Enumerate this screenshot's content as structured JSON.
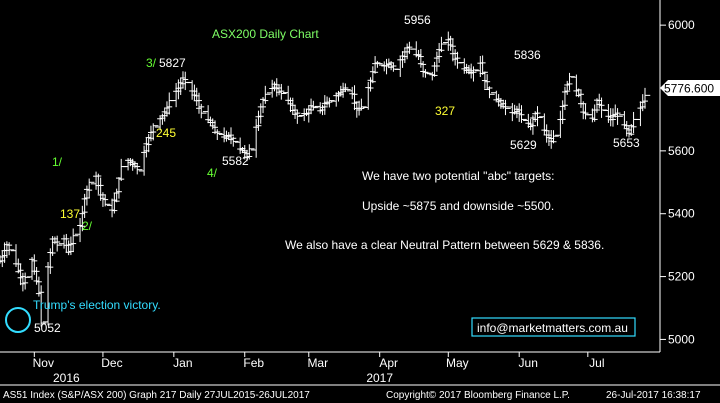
{
  "chart_data": {
    "type": "ohlc",
    "title": "ASX200 Daily Chart",
    "y_range": [
      4960,
      6080
    ],
    "y_ticks": [
      5000,
      5200,
      5400,
      5600,
      5800,
      6000
    ],
    "y_tick_labels": [
      "5000",
      "5200",
      "5400",
      "5600",
      "5800",
      "6000"
    ],
    "last_value_label": "5776.600",
    "last_value": 5776.6,
    "x_start": "2016-10-17",
    "x_end": "2017-07-26",
    "x_month_labels": [
      {
        "label": "Nov",
        "date": "2016-11-01"
      },
      {
        "label": "Dec",
        "date": "2016-12-01"
      },
      {
        "label": "Jan",
        "date": "2017-01-01"
      },
      {
        "label": "Feb",
        "date": "2017-02-01"
      },
      {
        "label": "Mar",
        "date": "2017-03-01"
      },
      {
        "label": "Apr",
        "date": "2017-04-01"
      },
      {
        "label": "May",
        "date": "2017-05-01"
      },
      {
        "label": "Jun",
        "date": "2017-06-01"
      },
      {
        "label": "Jul",
        "date": "2017-07-01"
      }
    ],
    "x_year_labels": [
      {
        "label": "2016",
        "date": "2016-11-15"
      },
      {
        "label": "2017",
        "date": "2017-04-01"
      }
    ],
    "series": [
      {
        "name": "AS51 Index (S&P/ASX 200)",
        "close": [
          {
            "date": "2016-10-17",
            "value": 5250
          },
          {
            "date": "2016-10-20",
            "value": 5300
          },
          {
            "date": "2016-10-24",
            "value": 5240
          },
          {
            "date": "2016-10-27",
            "value": 5180
          },
          {
            "date": "2016-10-31",
            "value": 5250
          },
          {
            "date": "2016-11-03",
            "value": 5150
          },
          {
            "date": "2016-11-04",
            "value": 5052
          },
          {
            "date": "2016-11-07",
            "value": 5230
          },
          {
            "date": "2016-11-09",
            "value": 5320
          },
          {
            "date": "2016-11-11",
            "value": 5300
          },
          {
            "date": "2016-11-14",
            "value": 5320
          },
          {
            "date": "2016-11-16",
            "value": 5280
          },
          {
            "date": "2016-11-18",
            "value": 5330
          },
          {
            "date": "2016-11-21",
            "value": 5360
          },
          {
            "date": "2016-11-23",
            "value": 5450
          },
          {
            "date": "2016-11-25",
            "value": 5500
          },
          {
            "date": "2016-11-28",
            "value": 5520
          },
          {
            "date": "2016-11-30",
            "value": 5460
          },
          {
            "date": "2016-12-02",
            "value": 5430
          },
          {
            "date": "2016-12-05",
            "value": 5410
          },
          {
            "date": "2016-12-07",
            "value": 5470
          },
          {
            "date": "2016-12-09",
            "value": 5550
          },
          {
            "date": "2016-12-12",
            "value": 5570
          },
          {
            "date": "2016-12-14",
            "value": 5560
          },
          {
            "date": "2016-12-16",
            "value": 5540
          },
          {
            "date": "2016-12-19",
            "value": 5600
          },
          {
            "date": "2016-12-21",
            "value": 5640
          },
          {
            "date": "2016-12-23",
            "value": 5680
          },
          {
            "date": "2016-12-28",
            "value": 5720
          },
          {
            "date": "2016-12-30",
            "value": 5760
          },
          {
            "date": "2017-01-03",
            "value": 5800
          },
          {
            "date": "2017-01-05",
            "value": 5827
          },
          {
            "date": "2017-01-09",
            "value": 5790
          },
          {
            "date": "2017-01-11",
            "value": 5760
          },
          {
            "date": "2017-01-13",
            "value": 5720
          },
          {
            "date": "2017-01-17",
            "value": 5690
          },
          {
            "date": "2017-01-19",
            "value": 5660
          },
          {
            "date": "2017-01-23",
            "value": 5640
          },
          {
            "date": "2017-01-25",
            "value": 5650
          },
          {
            "date": "2017-01-27",
            "value": 5630
          },
          {
            "date": "2017-01-31",
            "value": 5600
          },
          {
            "date": "2017-02-02",
            "value": 5582
          },
          {
            "date": "2017-02-06",
            "value": 5680
          },
          {
            "date": "2017-02-08",
            "value": 5740
          },
          {
            "date": "2017-02-10",
            "value": 5780
          },
          {
            "date": "2017-02-14",
            "value": 5810
          },
          {
            "date": "2017-02-16",
            "value": 5790
          },
          {
            "date": "2017-02-20",
            "value": 5760
          },
          {
            "date": "2017-02-22",
            "value": 5730
          },
          {
            "date": "2017-02-24",
            "value": 5710
          },
          {
            "date": "2017-02-28",
            "value": 5720
          },
          {
            "date": "2017-03-02",
            "value": 5740
          },
          {
            "date": "2017-03-06",
            "value": 5730
          },
          {
            "date": "2017-03-08",
            "value": 5750
          },
          {
            "date": "2017-03-10",
            "value": 5760
          },
          {
            "date": "2017-03-14",
            "value": 5780
          },
          {
            "date": "2017-03-16",
            "value": 5800
          },
          {
            "date": "2017-03-20",
            "value": 5780
          },
          {
            "date": "2017-03-22",
            "value": 5730
          },
          {
            "date": "2017-03-24",
            "value": 5740
          },
          {
            "date": "2017-03-28",
            "value": 5820
          },
          {
            "date": "2017-03-30",
            "value": 5880
          },
          {
            "date": "2017-04-03",
            "value": 5870
          },
          {
            "date": "2017-04-05",
            "value": 5880
          },
          {
            "date": "2017-04-07",
            "value": 5860
          },
          {
            "date": "2017-04-11",
            "value": 5900
          },
          {
            "date": "2017-04-13",
            "value": 5930
          },
          {
            "date": "2017-04-18",
            "value": 5900
          },
          {
            "date": "2017-04-20",
            "value": 5850
          },
          {
            "date": "2017-04-24",
            "value": 5840
          },
          {
            "date": "2017-04-26",
            "value": 5900
          },
          {
            "date": "2017-04-28",
            "value": 5940
          },
          {
            "date": "2017-05-01",
            "value": 5956
          },
          {
            "date": "2017-05-03",
            "value": 5910
          },
          {
            "date": "2017-05-05",
            "value": 5880
          },
          {
            "date": "2017-05-09",
            "value": 5860
          },
          {
            "date": "2017-05-11",
            "value": 5850
          },
          {
            "date": "2017-05-15",
            "value": 5880
          },
          {
            "date": "2017-05-17",
            "value": 5820
          },
          {
            "date": "2017-05-19",
            "value": 5780
          },
          {
            "date": "2017-05-23",
            "value": 5760
          },
          {
            "date": "2017-05-25",
            "value": 5740
          },
          {
            "date": "2017-05-29",
            "value": 5720
          },
          {
            "date": "2017-05-31",
            "value": 5730
          },
          {
            "date": "2017-06-02",
            "value": 5700
          },
          {
            "date": "2017-06-06",
            "value": 5680
          },
          {
            "date": "2017-06-08",
            "value": 5720
          },
          {
            "date": "2017-06-13",
            "value": 5650
          },
          {
            "date": "2017-06-15",
            "value": 5629
          },
          {
            "date": "2017-06-19",
            "value": 5700
          },
          {
            "date": "2017-06-21",
            "value": 5790
          },
          {
            "date": "2017-06-23",
            "value": 5836
          },
          {
            "date": "2017-06-27",
            "value": 5780
          },
          {
            "date": "2017-06-29",
            "value": 5720
          },
          {
            "date": "2017-07-03",
            "value": 5700
          },
          {
            "date": "2017-07-05",
            "value": 5760
          },
          {
            "date": "2017-07-07",
            "value": 5730
          },
          {
            "date": "2017-07-11",
            "value": 5700
          },
          {
            "date": "2017-07-13",
            "value": 5720
          },
          {
            "date": "2017-07-17",
            "value": 5680
          },
          {
            "date": "2017-07-19",
            "value": 5653
          },
          {
            "date": "2017-07-21",
            "value": 5700
          },
          {
            "date": "2017-07-24",
            "value": 5740
          },
          {
            "date": "2017-07-26",
            "value": 5776.6
          }
        ]
      }
    ],
    "annotations": {
      "price_labels": [
        {
          "text": "5052",
          "date": "2016-11-04",
          "value": 5052
        },
        {
          "text": "5827",
          "date": "2017-01-05",
          "value": 5827
        },
        {
          "text": "5582",
          "date": "2017-02-02",
          "value": 5582
        },
        {
          "text": "5956",
          "date": "2017-05-01",
          "value": 5956
        },
        {
          "text": "5836",
          "date": "2017-06-23",
          "value": 5836
        },
        {
          "text": "5629",
          "date": "2017-06-15",
          "value": 5629
        },
        {
          "text": "5653",
          "date": "2017-07-19",
          "value": 5653
        }
      ],
      "wave_labels": [
        {
          "text": "1/",
          "date": "2016-11-25"
        },
        {
          "text": "2/",
          "date": "2016-12-02"
        },
        {
          "text": "3/",
          "date": "2017-01-05"
        },
        {
          "text": "4/",
          "date": "2017-02-02"
        }
      ],
      "point_counts": [
        "137",
        "245",
        "327"
      ],
      "commentary": [
        "We have two potential \"abc\" targets:",
        "Upside ~5875 and downside ~5500.",
        "We also have a clear Neutral Pattern between 5629 & 5836."
      ],
      "event_label": "Trump's election victory.",
      "contact": "info@marketmatters.com.au"
    },
    "footer": {
      "left": "AS51 Index (S&P/ASX 200) Graph 217  Daily 27JUL2015-26JUL2017",
      "center": "Copyright© 2017 Bloomberg Finance L.P.",
      "right": "26-Jul-2017 16:38:17"
    },
    "grid": false,
    "colors": {
      "background": "#000000",
      "bars": "#ffffff",
      "title": "#7fff66",
      "wave": "#66ff33",
      "count": "#ffff33",
      "commentary": "#ffffff",
      "event": "#33ddff",
      "contact_border": "#33ddff"
    }
  }
}
